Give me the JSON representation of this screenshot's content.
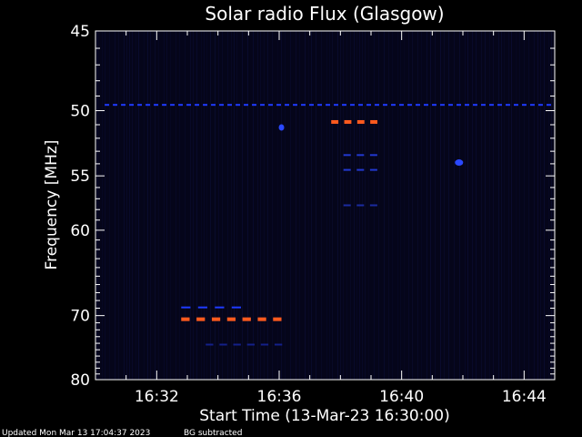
{
  "chart_data": {
    "type": "heatmap",
    "title": "Solar radio Flux (Glasgow)",
    "xlabel": "Start Time (13-Mar-23 16:30:00)",
    "ylabel": "Frequency [MHz]",
    "x_range_minutes": [
      16.5,
      16.75
    ],
    "x_range": [
      "16:30:00",
      "16:45:00"
    ],
    "y_range": [
      45,
      80
    ],
    "x_ticks": [
      {
        "label": "16:32",
        "minute": 32
      },
      {
        "label": "16:36",
        "minute": 36
      },
      {
        "label": "16:40",
        "minute": 40
      },
      {
        "label": "16:44",
        "minute": 44
      }
    ],
    "y_ticks": [
      45,
      50,
      55,
      60,
      70,
      80
    ],
    "features": [
      {
        "name": "strong-band-70.5",
        "freq": 70.5,
        "t_start": 32.8,
        "t_end": 36.3,
        "color": "#ff5a1e",
        "segments": 7
      },
      {
        "name": "strong-band-50.8",
        "freq": 50.8,
        "t_start": 37.7,
        "t_end": 39.4,
        "color": "#ff5a1e",
        "segments": 4
      },
      {
        "name": "blue-band-69",
        "freq": 68.9,
        "t_start": 32.8,
        "t_end": 35.0,
        "color": "#1f3bff",
        "segments": 4
      },
      {
        "name": "blue-band-74",
        "freq": 74.2,
        "t_start": 33.6,
        "t_end": 36.3,
        "color": "#14208a",
        "segments": 6
      },
      {
        "name": "blue-band-53",
        "freq": 53.3,
        "t_start": 38.1,
        "t_end": 39.4,
        "color": "#2238d0",
        "segments": 3
      },
      {
        "name": "blue-band-54.5",
        "freq": 54.5,
        "t_start": 38.1,
        "t_end": 39.4,
        "color": "#2238d0",
        "segments": 3
      },
      {
        "name": "blue-band-57.6",
        "freq": 57.6,
        "t_start": 38.1,
        "t_end": 39.4,
        "color": "#1a2aa0",
        "segments": 3
      },
      {
        "name": "blue-line-49.6",
        "freq": 49.6,
        "t_start": 30.3,
        "t_end": 45.0,
        "color": "#1f3bff",
        "segments": 55
      },
      {
        "name": "blue-dot-51.2",
        "freq": 51.2,
        "t_start": 36.05,
        "t_end": 36.1,
        "color": "#2a48ff",
        "segments": 1
      },
      {
        "name": "blue-blob-54",
        "freq": 53.9,
        "t_start": 41.8,
        "t_end": 41.95,
        "color": "#2a48ff",
        "segments": 1
      }
    ]
  },
  "footer": {
    "updated": "Updated Mon Mar 13 17:04:37 2023",
    "bg": "BG subtracted"
  }
}
